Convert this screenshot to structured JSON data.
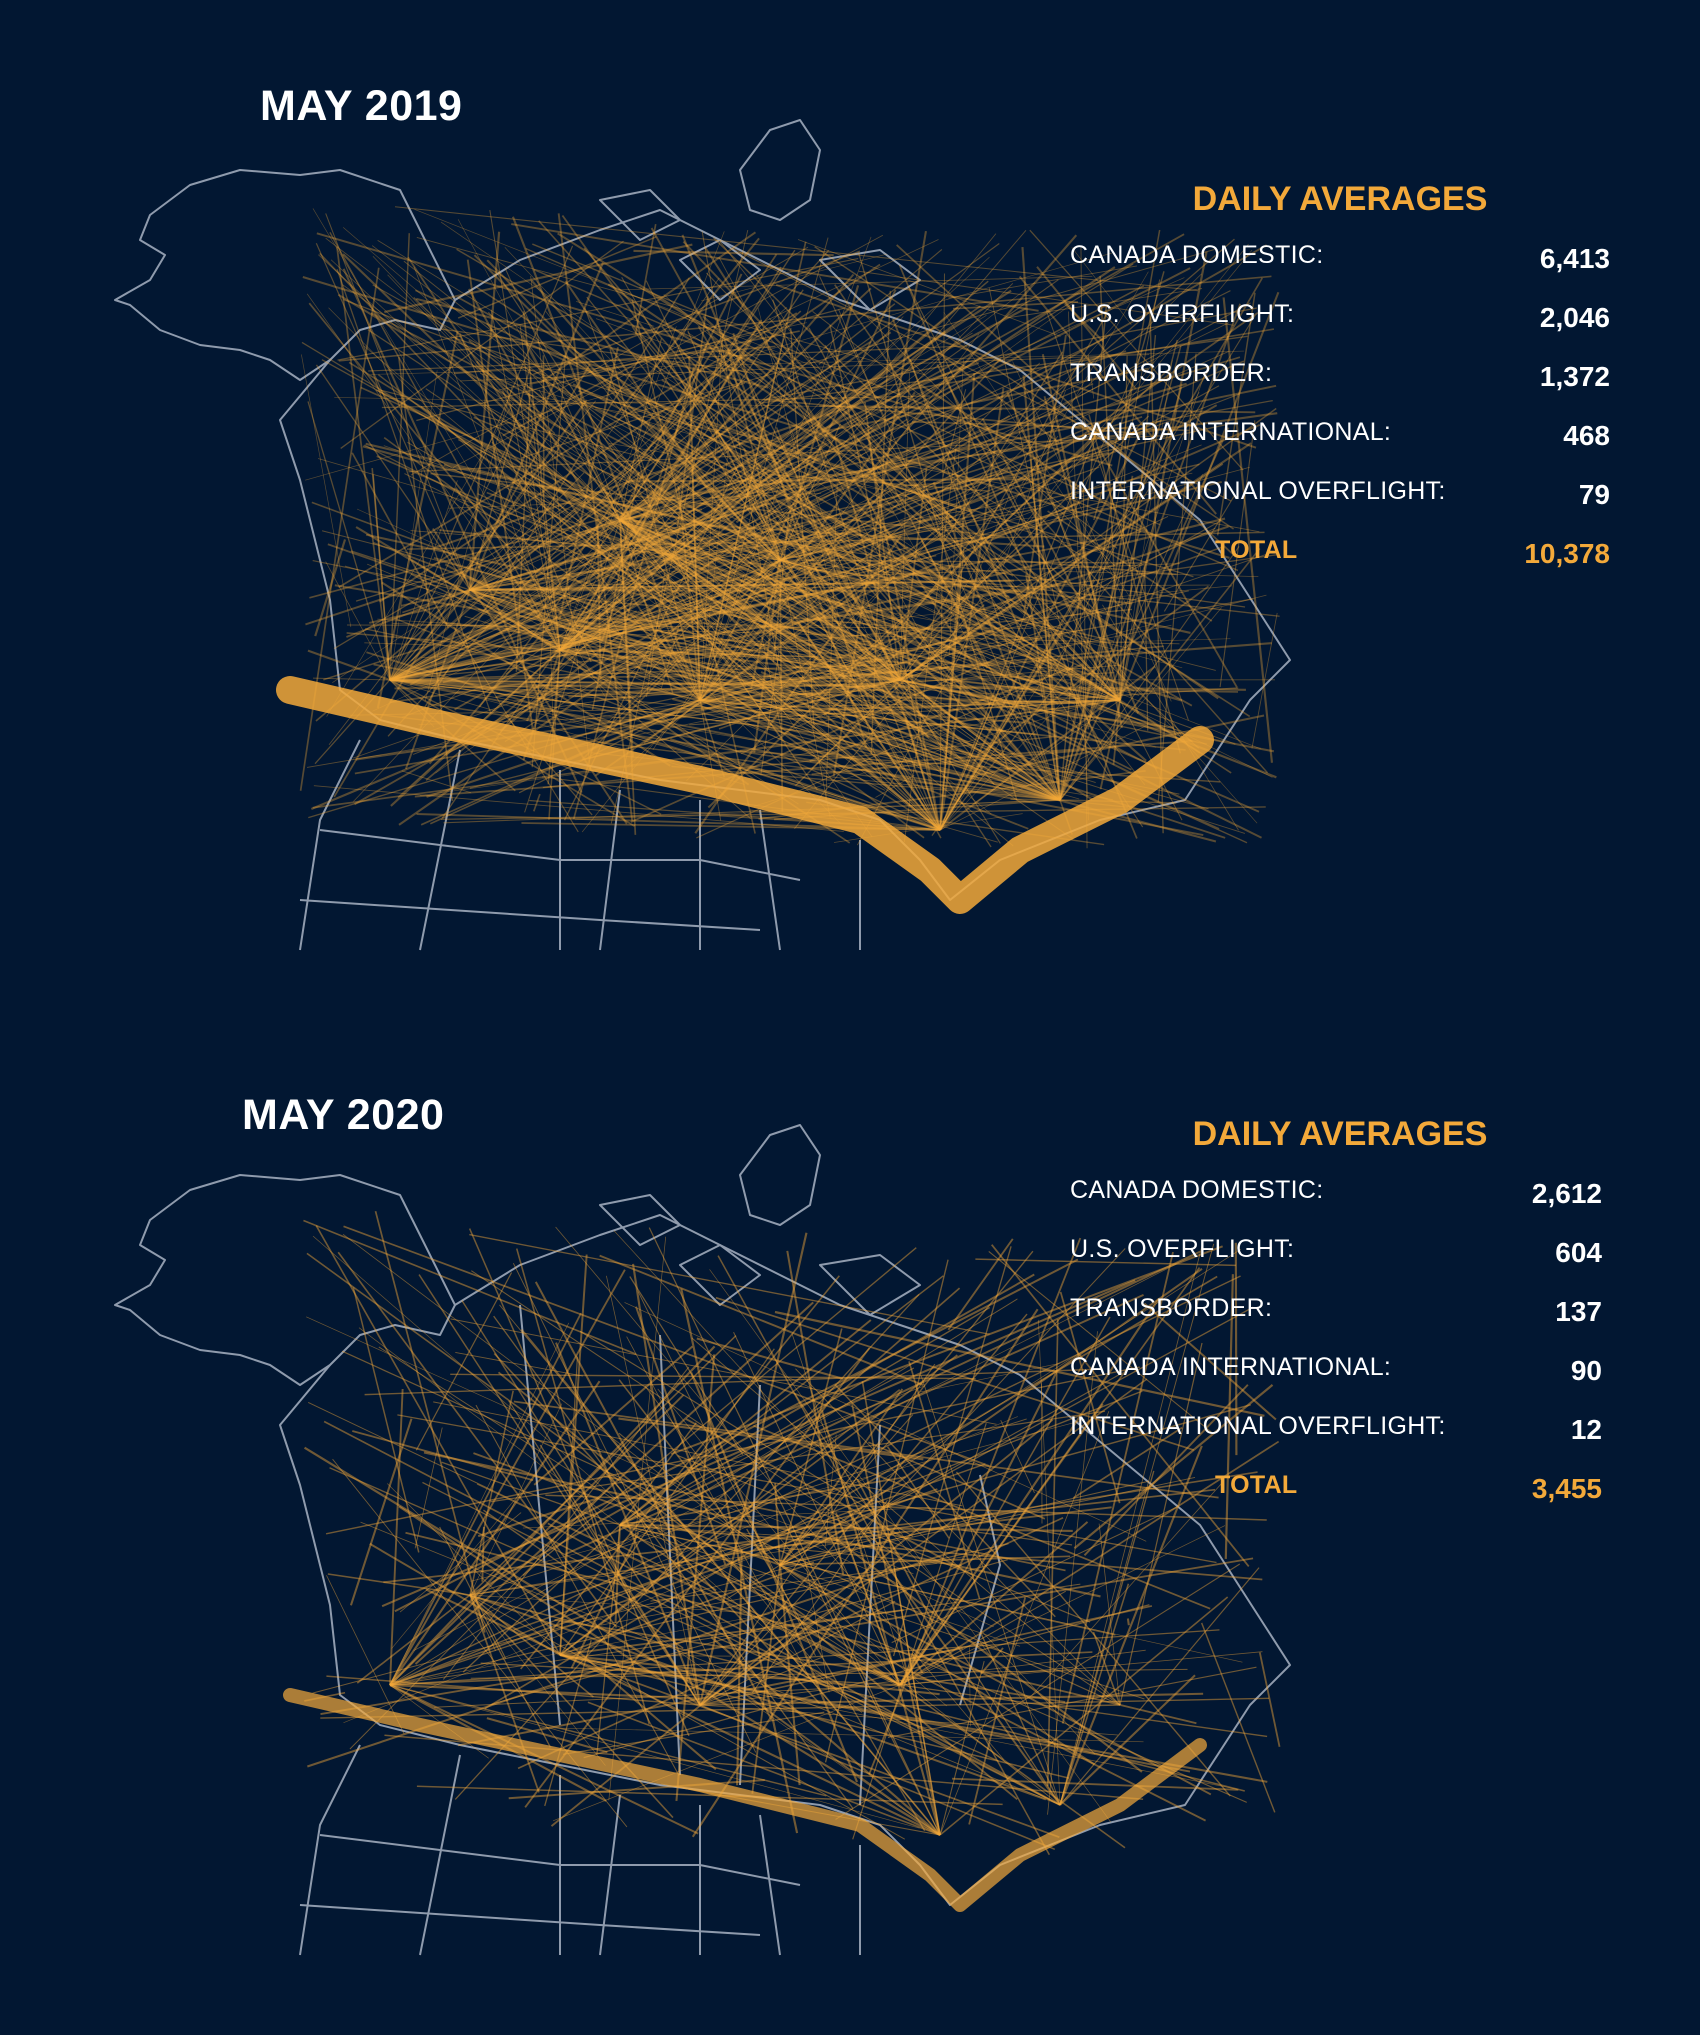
{
  "colors": {
    "background": "#021732",
    "flight_path": "#f3a93a",
    "border": "#8f9bad",
    "text": "#ffffff"
  },
  "panels": [
    {
      "title": "MAY 2019",
      "heading": "DAILY AVERAGES",
      "stats": [
        {
          "label": "CANADA DOMESTIC:",
          "value": "6,413"
        },
        {
          "label": "U.S. OVERFLIGHT:",
          "value": "2,046"
        },
        {
          "label": "TRANSBORDER:",
          "value": "1,372"
        },
        {
          "label": "CANADA INTERNATIONAL:",
          "value": "468"
        },
        {
          "label": "INTERNATIONAL OVERFLIGHT:",
          "value": "79"
        }
      ],
      "total_label": "TOTAL",
      "total_value": "10,378"
    },
    {
      "title": "MAY 2020",
      "heading": "DAILY AVERAGES",
      "stats": [
        {
          "label": "CANADA DOMESTIC:",
          "value": "2,612"
        },
        {
          "label": "U.S. OVERFLIGHT:",
          "value": "604"
        },
        {
          "label": "TRANSBORDER:",
          "value": "137"
        },
        {
          "label": "CANADA INTERNATIONAL:",
          "value": "90"
        },
        {
          "label": "INTERNATIONAL OVERFLIGHT:",
          "value": "12"
        }
      ],
      "total_label": "TOTAL",
      "total_value": "3,455"
    }
  ]
}
